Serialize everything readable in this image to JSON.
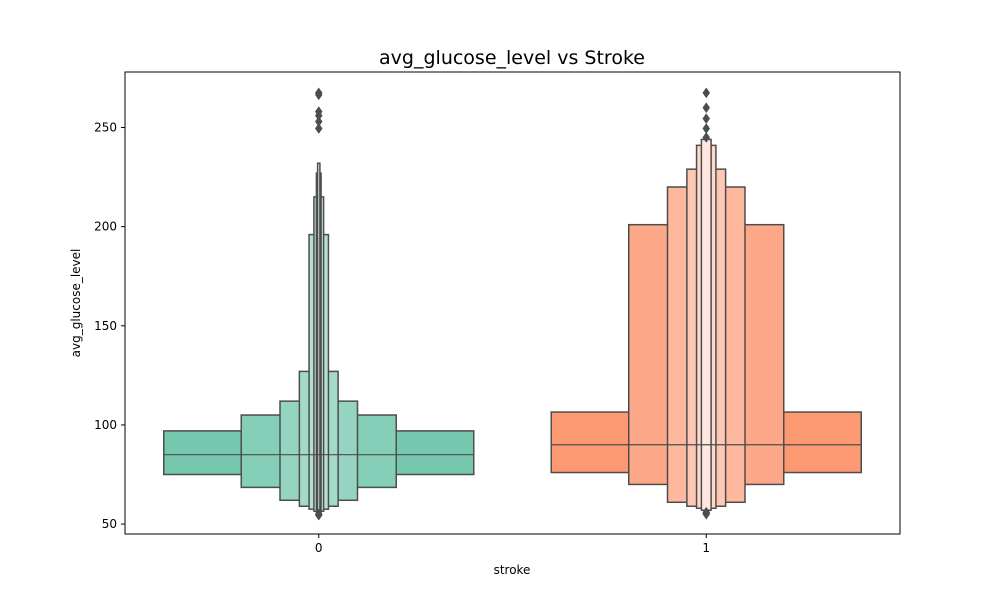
{
  "chart_data": {
    "type": "boxen",
    "title": "avg_glucose_level vs Stroke",
    "xlabel": "stroke",
    "ylabel": "avg_glucose_level",
    "categories": [
      "0",
      "1"
    ],
    "ylim": [
      45,
      278
    ],
    "yticks": [
      50,
      100,
      150,
      200,
      250
    ],
    "grid": false,
    "legend": "none",
    "colors": {
      "axis": "#000000",
      "edge": "#4d4d4d",
      "series_0_base": "#66c2a5",
      "series_1_base": "#fc8d62"
    },
    "series": [
      {
        "category": "0",
        "median": 85,
        "boxes": [
          {
            "low": 75,
            "high": 97,
            "width": 0.8
          },
          {
            "low": 68.5,
            "high": 105,
            "width": 0.4
          },
          {
            "low": 62,
            "high": 112,
            "width": 0.2
          },
          {
            "low": 59,
            "high": 127,
            "width": 0.1
          },
          {
            "low": 57.5,
            "high": 196,
            "width": 0.05
          },
          {
            "low": 56.5,
            "high": 215,
            "width": 0.025
          },
          {
            "low": 56,
            "high": 227,
            "width": 0.012
          },
          {
            "low": 55.5,
            "high": 232,
            "width": 0.006
          }
        ],
        "outliers": [
          54.5,
          55,
          249.5,
          253,
          256,
          258,
          266.5,
          267.5
        ]
      },
      {
        "category": "1",
        "median": 90,
        "boxes": [
          {
            "low": 76,
            "high": 106.5,
            "width": 0.8
          },
          {
            "low": 70,
            "high": 201,
            "width": 0.4
          },
          {
            "low": 61,
            "high": 220,
            "width": 0.2
          },
          {
            "low": 59,
            "high": 229,
            "width": 0.1
          },
          {
            "low": 58,
            "high": 241,
            "width": 0.05
          },
          {
            "low": 57,
            "high": 244,
            "width": 0.025
          }
        ],
        "outliers": [
          55,
          55.5,
          56,
          245,
          249.5,
          254.5,
          260,
          267.5
        ]
      }
    ]
  }
}
